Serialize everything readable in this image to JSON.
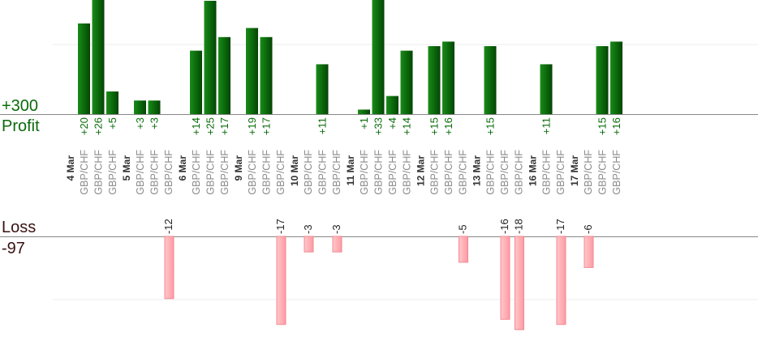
{
  "summary": {
    "profit_total": "+300",
    "profit_label": "Profit",
    "loss_label": "Loss",
    "loss_total": "-97"
  },
  "colors": {
    "profit_bar": "#0b6b0b",
    "loss_bar": "#ffb3b8",
    "pair_text": "#8a8a8a",
    "date_text": "#333333"
  },
  "chart_data": {
    "type": "bar",
    "title": "",
    "xlabel": "",
    "ylabel": "",
    "ylim": [
      -20,
      35
    ],
    "grid": true,
    "legend": "none",
    "days": [
      {
        "date": "4 Mar",
        "trades": [
          {
            "pair": "GBP/CHF",
            "value": 20
          },
          {
            "pair": "GBP/CHF",
            "value": 26
          },
          {
            "pair": "GBP/CHF",
            "value": 5
          }
        ]
      },
      {
        "date": "5 Mar",
        "trades": [
          {
            "pair": "GBP/CHF",
            "value": 3
          },
          {
            "pair": "GBP/CHF",
            "value": 3
          },
          {
            "pair": "GBP/CHF",
            "value": -12
          }
        ]
      },
      {
        "date": "6 Mar",
        "trades": [
          {
            "pair": "GBP/CHF",
            "value": 14
          },
          {
            "pair": "GBP/CHF",
            "value": 25
          },
          {
            "pair": "GBP/CHF",
            "value": 17
          }
        ]
      },
      {
        "date": "9 Mar",
        "trades": [
          {
            "pair": "GBP/CHF",
            "value": 19
          },
          {
            "pair": "GBP/CHF",
            "value": 17
          },
          {
            "pair": "GBP/CHF",
            "value": -17
          }
        ]
      },
      {
        "date": "10 Mar",
        "trades": [
          {
            "pair": "GBP/CHF",
            "value": -3
          },
          {
            "pair": "GBP/CHF",
            "value": 11
          },
          {
            "pair": "GBP/CHF",
            "value": -3
          }
        ]
      },
      {
        "date": "11 Mar",
        "trades": [
          {
            "pair": "GBP/CHF",
            "value": 1
          },
          {
            "pair": "GBP/CHF",
            "value": 33
          },
          {
            "pair": "GBP/CHF",
            "value": 4
          },
          {
            "pair": "GBP/CHF",
            "value": 14
          }
        ]
      },
      {
        "date": "12 Mar",
        "trades": [
          {
            "pair": "GBP/CHF",
            "value": 15
          },
          {
            "pair": "GBP/CHF",
            "value": 16
          },
          {
            "pair": "GBP/CHF",
            "value": -5
          }
        ]
      },
      {
        "date": "13 Mar",
        "trades": [
          {
            "pair": "GBP/CHF",
            "value": 15
          },
          {
            "pair": "GBP/CHF",
            "value": -16
          },
          {
            "pair": "GBP/CHF",
            "value": -18
          }
        ]
      },
      {
        "date": "16 Mar",
        "trades": [
          {
            "pair": "GBP/CHF",
            "value": 11
          },
          {
            "pair": "GBP/CHF",
            "value": -17
          }
        ]
      },
      {
        "date": "17 Mar",
        "trades": [
          {
            "pair": "GBP/CHF",
            "value": -6
          },
          {
            "pair": "GBP/CHF",
            "value": 15
          },
          {
            "pair": "GBP/CHF",
            "value": 16
          }
        ]
      }
    ]
  }
}
